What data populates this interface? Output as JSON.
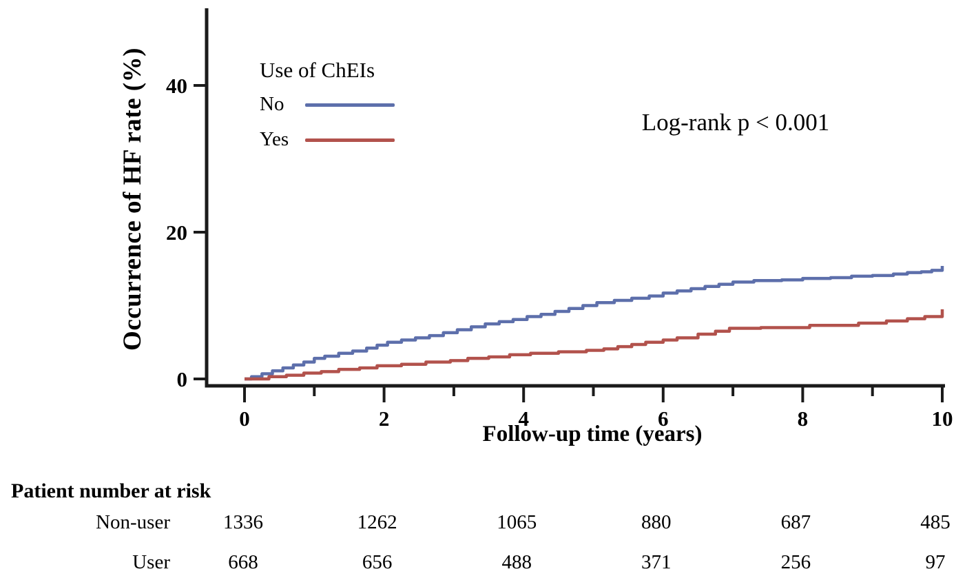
{
  "figure": {
    "y_axis_title": "Occurrence of HF rate (%)",
    "x_axis_title": "Follow-up time (years)",
    "annotation": "Log-rank p < 0.001"
  },
  "legend": {
    "title": "Use of ChEIs",
    "entries": [
      {
        "label": "No",
        "color": "#5d6fab"
      },
      {
        "label": "Yes",
        "color": "#b2524c"
      }
    ]
  },
  "risk_table": {
    "title": "Patient number at risk",
    "time_points": [
      0,
      2,
      4,
      6,
      8,
      10
    ],
    "rows": [
      {
        "label": "Non-user",
        "values": [
          "1336",
          "1262",
          "1065",
          "880",
          "687",
          "485"
        ]
      },
      {
        "label": "User",
        "values": [
          "668",
          "656",
          "488",
          "371",
          "256",
          "97"
        ]
      }
    ]
  },
  "chart_data": {
    "type": "line",
    "subtype": "kaplan-meier-step",
    "title": "",
    "xlabel": "Follow-up time (years)",
    "ylabel": "Occurrence of HF rate (%)",
    "xlim": [
      0,
      10
    ],
    "ylim": [
      0,
      51
    ],
    "x_ticks": [
      0,
      1,
      2,
      3,
      4,
      5,
      6,
      7,
      8,
      9,
      10
    ],
    "x_tick_labels": [
      "0",
      "",
      "2",
      "",
      "4",
      "",
      "6",
      "",
      "8",
      "",
      "10"
    ],
    "y_ticks": [
      0,
      20,
      40
    ],
    "grid": false,
    "legend_position": "upper-left-inside",
    "annotation": "Log-rank p < 0.001",
    "series": [
      {
        "name": "No",
        "color": "#5d6fab",
        "points": [
          [
            0,
            0
          ],
          [
            0.1,
            0.3
          ],
          [
            0.25,
            0.7
          ],
          [
            0.4,
            1.1
          ],
          [
            0.55,
            1.5
          ],
          [
            0.7,
            1.9
          ],
          [
            0.85,
            2.3
          ],
          [
            1.0,
            2.8
          ],
          [
            1.15,
            3.1
          ],
          [
            1.35,
            3.5
          ],
          [
            1.55,
            3.8
          ],
          [
            1.75,
            4.2
          ],
          [
            1.9,
            4.6
          ],
          [
            2.05,
            5.0
          ],
          [
            2.25,
            5.3
          ],
          [
            2.45,
            5.6
          ],
          [
            2.65,
            5.9
          ],
          [
            2.85,
            6.3
          ],
          [
            3.05,
            6.7
          ],
          [
            3.25,
            7.1
          ],
          [
            3.45,
            7.5
          ],
          [
            3.65,
            7.8
          ],
          [
            3.85,
            8.1
          ],
          [
            4.05,
            8.5
          ],
          [
            4.25,
            8.8
          ],
          [
            4.45,
            9.2
          ],
          [
            4.65,
            9.6
          ],
          [
            4.85,
            10.0
          ],
          [
            5.05,
            10.4
          ],
          [
            5.3,
            10.7
          ],
          [
            5.55,
            11.0
          ],
          [
            5.8,
            11.3
          ],
          [
            6.0,
            11.7
          ],
          [
            6.2,
            12.0
          ],
          [
            6.4,
            12.3
          ],
          [
            6.6,
            12.6
          ],
          [
            6.8,
            12.9
          ],
          [
            7.0,
            13.2
          ],
          [
            7.3,
            13.4
          ],
          [
            7.7,
            13.5
          ],
          [
            8.0,
            13.7
          ],
          [
            8.4,
            13.8
          ],
          [
            8.7,
            14.0
          ],
          [
            9.0,
            14.1
          ],
          [
            9.3,
            14.3
          ],
          [
            9.5,
            14.5
          ],
          [
            9.7,
            14.6
          ],
          [
            9.85,
            14.8
          ],
          [
            10,
            15.4
          ]
        ]
      },
      {
        "name": "Yes",
        "color": "#b2524c",
        "points": [
          [
            0,
            0
          ],
          [
            0.35,
            0.3
          ],
          [
            0.6,
            0.5
          ],
          [
            0.85,
            0.8
          ],
          [
            1.1,
            1.0
          ],
          [
            1.35,
            1.3
          ],
          [
            1.65,
            1.5
          ],
          [
            1.9,
            1.8
          ],
          [
            2.25,
            2.0
          ],
          [
            2.6,
            2.3
          ],
          [
            2.95,
            2.5
          ],
          [
            3.2,
            2.8
          ],
          [
            3.5,
            3.0
          ],
          [
            3.8,
            3.3
          ],
          [
            4.1,
            3.5
          ],
          [
            4.5,
            3.7
          ],
          [
            4.9,
            3.9
          ],
          [
            5.15,
            4.1
          ],
          [
            5.35,
            4.4
          ],
          [
            5.55,
            4.7
          ],
          [
            5.75,
            5.0
          ],
          [
            6.0,
            5.3
          ],
          [
            6.2,
            5.6
          ],
          [
            6.5,
            6.1
          ],
          [
            6.75,
            6.5
          ],
          [
            6.95,
            6.9
          ],
          [
            7.4,
            7.0
          ],
          [
            8.1,
            7.3
          ],
          [
            8.8,
            7.6
          ],
          [
            9.2,
            7.9
          ],
          [
            9.5,
            8.2
          ],
          [
            9.75,
            8.5
          ],
          [
            10,
            9.5
          ]
        ]
      }
    ]
  },
  "colors": {
    "axis": "#1b1b1b",
    "text": "#000000",
    "no_line": "#5d6fab",
    "yes_line": "#b2524c"
  }
}
